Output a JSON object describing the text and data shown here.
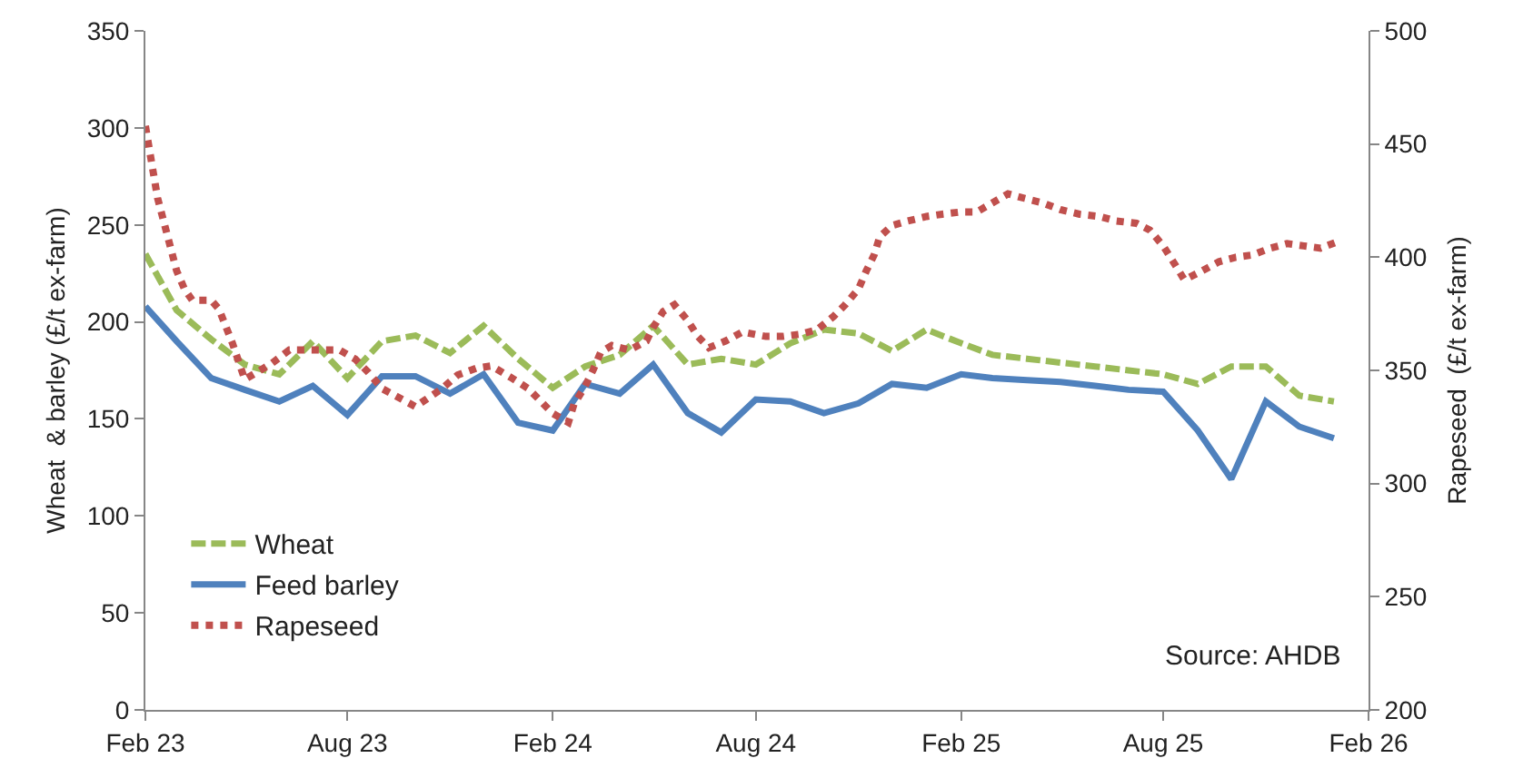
{
  "chart_data": {
    "type": "line",
    "ylabel": "Wheat  & barley (£/t ex-farm)",
    "y2label": "Rapeseed  (£/t ex-farm)",
    "x": [
      "2023-02-01",
      "2023-03-01",
      "2023-04-01",
      "2023-05-01",
      "2023-06-01",
      "2023-07-01",
      "2023-08-01",
      "2023-09-01",
      "2023-10-01",
      "2023-11-01",
      "2023-12-01",
      "2024-01-01",
      "2024-02-01",
      "2024-03-01",
      "2024-04-01",
      "2024-05-01",
      "2024-06-01",
      "2024-07-01",
      "2024-08-01",
      "2024-09-01",
      "2024-10-01",
      "2024-11-01",
      "2024-12-01",
      "2025-01-01",
      "2025-02-01",
      "2025-03-01",
      "2025-04-01",
      "2025-05-01",
      "2025-06-01",
      "2025-07-01",
      "2025-08-01",
      "2025-09-01",
      "2025-10-01",
      "2025-11-01",
      "2025-12-01",
      "2026-01-01"
    ],
    "series": [
      {
        "name": "Wheat",
        "color": "#9bbb59",
        "line_style": "dashed",
        "values": [
          235,
          206,
          191,
          178,
          173,
          190,
          171,
          190,
          193,
          184,
          198,
          181,
          166,
          177,
          183,
          198,
          178,
          181,
          178,
          189,
          196,
          194,
          185,
          196,
          189,
          183,
          181,
          179,
          177,
          175,
          173,
          168,
          177,
          177,
          162,
          159
        ]
      },
      {
        "name": "Feed barley",
        "color": "#4f81bd",
        "line_style": "solid",
        "values": [
          208,
          190,
          171,
          165,
          159,
          167,
          152,
          172,
          172,
          163,
          173,
          148,
          144,
          168,
          163,
          178,
          153,
          143,
          160,
          159,
          153,
          158,
          168,
          166,
          173,
          171,
          170,
          169,
          167,
          165,
          164,
          144,
          119,
          159,
          146,
          140
        ]
      },
      {
        "name": "Rapeseed",
        "color": "#c0504d",
        "line_style": "dotted",
        "axis": "y2",
        "x": [
          "2023-02-01",
          "2023-02-12",
          "2023-03-01",
          "2023-03-08",
          "2023-03-15",
          "2023-04-01",
          "2023-04-08",
          "2023-04-20",
          "2023-05-01",
          "2023-05-25",
          "2023-06-10",
          "2023-07-10",
          "2023-07-25",
          "2023-08-08",
          "2023-08-20",
          "2023-09-01",
          "2023-10-01",
          "2023-10-10",
          "2023-10-25",
          "2023-11-08",
          "2023-11-25",
          "2023-12-08",
          "2023-12-25",
          "2024-01-10",
          "2024-01-20",
          "2024-02-01",
          "2024-02-15",
          "2024-02-20",
          "2024-03-01",
          "2024-03-08",
          "2024-03-15",
          "2024-03-25",
          "2024-04-10",
          "2024-04-25",
          "2024-05-01",
          "2024-05-10",
          "2024-05-20",
          "2024-06-01",
          "2024-06-10",
          "2024-06-20",
          "2024-07-05",
          "2024-07-20",
          "2024-08-10",
          "2024-08-25",
          "2024-09-10",
          "2024-09-25",
          "2024-10-10",
          "2024-10-20",
          "2024-11-01",
          "2024-11-08",
          "2024-11-15",
          "2024-11-20",
          "2024-12-01",
          "2024-12-15",
          "2025-01-01",
          "2025-01-15",
          "2025-02-01",
          "2025-02-15",
          "2025-03-01",
          "2025-03-15",
          "2025-03-30",
          "2025-04-15",
          "2025-05-01",
          "2025-05-18",
          "2025-06-05",
          "2025-06-20",
          "2025-07-08",
          "2025-07-20",
          "2025-08-01",
          "2025-08-10",
          "2025-08-20",
          "2025-09-05",
          "2025-09-20",
          "2025-10-05",
          "2025-10-20",
          "2025-11-05",
          "2025-11-20",
          "2025-12-05",
          "2025-12-20",
          "2026-01-05"
        ],
        "values": [
          458,
          426,
          394,
          386,
          381,
          381,
          377,
          362,
          346,
          353,
          359,
          359,
          359,
          355,
          349,
          342,
          334,
          337,
          342,
          348,
          351,
          352,
          347,
          342,
          337,
          331,
          327,
          335,
          343,
          350,
          358,
          361,
          359,
          363,
          369,
          376,
          379,
          372,
          365,
          360,
          363,
          367,
          365,
          365,
          366,
          368,
          374,
          379,
          386,
          394,
          401,
          409,
          414,
          416,
          418,
          419,
          420,
          420,
          424,
          428,
          426,
          424,
          421,
          419,
          418,
          416,
          415,
          412,
          405,
          398,
          390,
          394,
          398,
          400,
          401,
          404,
          406,
          405,
          404,
          407
        ]
      }
    ],
    "xlim": [
      "2023-02-01",
      "2026-02-01"
    ],
    "xticks": [
      {
        "value": "2023-02-01",
        "label": "Feb 23"
      },
      {
        "value": "2023-08-01",
        "label": "Aug 23"
      },
      {
        "value": "2024-02-01",
        "label": "Feb 24"
      },
      {
        "value": "2024-08-01",
        "label": "Aug 24"
      },
      {
        "value": "2025-02-01",
        "label": "Feb 25"
      },
      {
        "value": "2025-08-01",
        "label": "Aug 25"
      },
      {
        "value": "2026-02-01",
        "label": "Feb 26"
      }
    ],
    "ylim": [
      0,
      350
    ],
    "yticks": [
      0,
      50,
      100,
      150,
      200,
      250,
      300,
      350
    ],
    "y2lim": [
      200,
      500
    ],
    "y2ticks": [
      200,
      250,
      300,
      350,
      400,
      450,
      500
    ],
    "legend": "bottom left",
    "grid": false,
    "marker": "none",
    "annotations": [
      "Source: AHDB"
    ]
  }
}
